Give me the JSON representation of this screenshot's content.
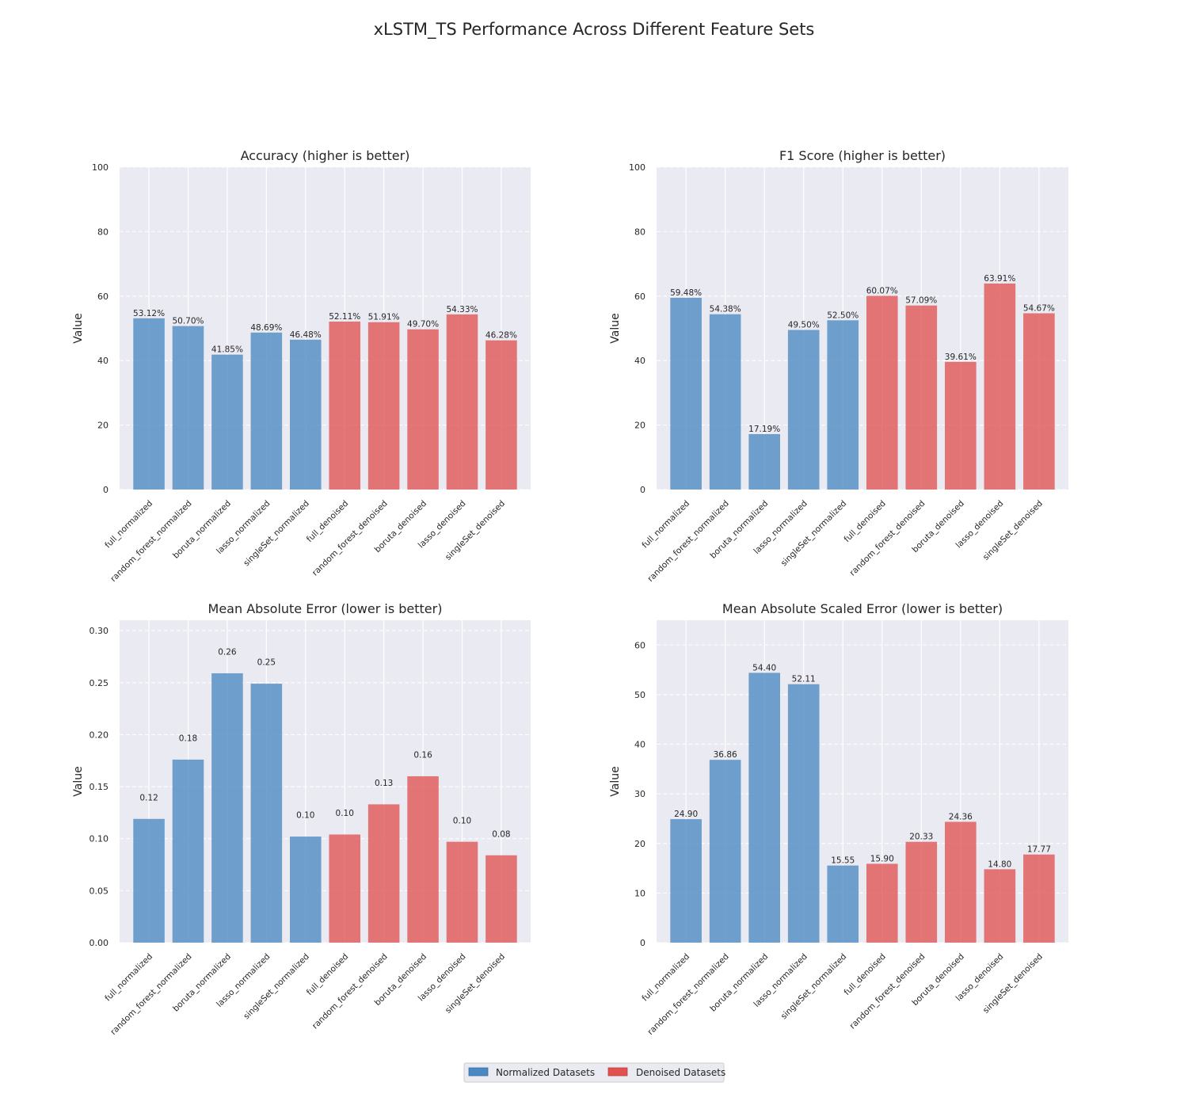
{
  "title": "xLSTM_TS Performance Across Different Feature Sets",
  "legend": {
    "position": "bottom-center",
    "items": [
      {
        "label": "Normalized Datasets",
        "color": "#4a88c2"
      },
      {
        "label": "Denoised Datasets",
        "color": "#e05252"
      }
    ]
  },
  "colors": {
    "normalized": "#4a88c2",
    "denoised": "#e05252",
    "axes_bg": "#eaeaf2",
    "grid": "#ffffff"
  },
  "chart_data": [
    {
      "type": "bar",
      "title": "Accuracy (higher is better)",
      "ylabel": "Value",
      "xlabel": "",
      "ylim": [
        0,
        100
      ],
      "yticks": [
        0,
        20,
        40,
        60,
        80,
        100
      ],
      "ytick_labels": [
        "0",
        "20",
        "40",
        "60",
        "80",
        "100"
      ],
      "categories": [
        "full_normalized",
        "random_forest_normalized",
        "boruta_normalized",
        "lasso_normalized",
        "singleSet_normalized",
        "full_denoised",
        "random_forest_denoised",
        "boruta_denoised",
        "lasso_denoised",
        "singleSet_denoised"
      ],
      "groups": [
        "normalized",
        "normalized",
        "normalized",
        "normalized",
        "normalized",
        "denoised",
        "denoised",
        "denoised",
        "denoised",
        "denoised"
      ],
      "values": [
        53.12,
        50.7,
        41.85,
        48.69,
        46.48,
        52.11,
        51.91,
        49.7,
        54.33,
        46.28
      ],
      "data_labels": [
        "53.12%",
        "50.70%",
        "41.85%",
        "48.69%",
        "46.48%",
        "52.11%",
        "51.91%",
        "49.70%",
        "54.33%",
        "46.28%"
      ]
    },
    {
      "type": "bar",
      "title": "F1 Score (higher is better)",
      "ylabel": "Value",
      "xlabel": "",
      "ylim": [
        0,
        100
      ],
      "yticks": [
        0,
        20,
        40,
        60,
        80,
        100
      ],
      "ytick_labels": [
        "0",
        "20",
        "40",
        "60",
        "80",
        "100"
      ],
      "categories": [
        "full_normalized",
        "random_forest_normalized",
        "boruta_normalized",
        "lasso_normalized",
        "singleSet_normalized",
        "full_denoised",
        "random_forest_denoised",
        "boruta_denoised",
        "lasso_denoised",
        "singleSet_denoised"
      ],
      "groups": [
        "normalized",
        "normalized",
        "normalized",
        "normalized",
        "normalized",
        "denoised",
        "denoised",
        "denoised",
        "denoised",
        "denoised"
      ],
      "values": [
        59.48,
        54.38,
        17.19,
        49.5,
        52.5,
        60.07,
        57.09,
        39.61,
        63.91,
        54.67
      ],
      "data_labels": [
        "59.48%",
        "54.38%",
        "17.19%",
        "49.50%",
        "52.50%",
        "60.07%",
        "57.09%",
        "39.61%",
        "63.91%",
        "54.67%"
      ]
    },
    {
      "type": "bar",
      "title": "Mean Absolute Error (lower is better)",
      "ylabel": "Value",
      "xlabel": "",
      "ylim": [
        0,
        0.31
      ],
      "yticks": [
        0,
        0.05,
        0.1,
        0.15,
        0.2,
        0.25,
        0.3
      ],
      "ytick_labels": [
        "0.00",
        "0.05",
        "0.10",
        "0.15",
        "0.20",
        "0.25",
        "0.30"
      ],
      "categories": [
        "full_normalized",
        "random_forest_normalized",
        "boruta_normalized",
        "lasso_normalized",
        "singleSet_normalized",
        "full_denoised",
        "random_forest_denoised",
        "boruta_denoised",
        "lasso_denoised",
        "singleSet_denoised"
      ],
      "groups": [
        "normalized",
        "normalized",
        "normalized",
        "normalized",
        "normalized",
        "denoised",
        "denoised",
        "denoised",
        "denoised",
        "denoised"
      ],
      "values": [
        0.119,
        0.176,
        0.259,
        0.249,
        0.102,
        0.104,
        0.133,
        0.16,
        0.097,
        0.084
      ],
      "data_labels": [
        "0.12",
        "0.18",
        "0.26",
        "0.25",
        "0.10",
        "0.10",
        "0.13",
        "0.16",
        "0.10",
        "0.08"
      ],
      "label_offset": 0.0155
    },
    {
      "type": "bar",
      "title": "Mean Absolute Scaled Error (lower is better)",
      "ylabel": "Value",
      "xlabel": "",
      "ylim": [
        0,
        65
      ],
      "yticks": [
        0,
        10,
        20,
        30,
        40,
        50,
        60
      ],
      "ytick_labels": [
        "0",
        "10",
        "20",
        "30",
        "40",
        "50",
        "60"
      ],
      "categories": [
        "full_normalized",
        "random_forest_normalized",
        "boruta_normalized",
        "lasso_normalized",
        "singleSet_normalized",
        "full_denoised",
        "random_forest_denoised",
        "boruta_denoised",
        "lasso_denoised",
        "singleSet_denoised"
      ],
      "groups": [
        "normalized",
        "normalized",
        "normalized",
        "normalized",
        "normalized",
        "denoised",
        "denoised",
        "denoised",
        "denoised",
        "denoised"
      ],
      "values": [
        24.9,
        36.86,
        54.4,
        52.11,
        15.55,
        15.9,
        20.33,
        24.36,
        14.8,
        17.77
      ],
      "data_labels": [
        "24.90",
        "36.86",
        "54.40",
        "52.11",
        "15.55",
        "15.90",
        "20.33",
        "24.36",
        "14.80",
        "17.77"
      ]
    }
  ]
}
